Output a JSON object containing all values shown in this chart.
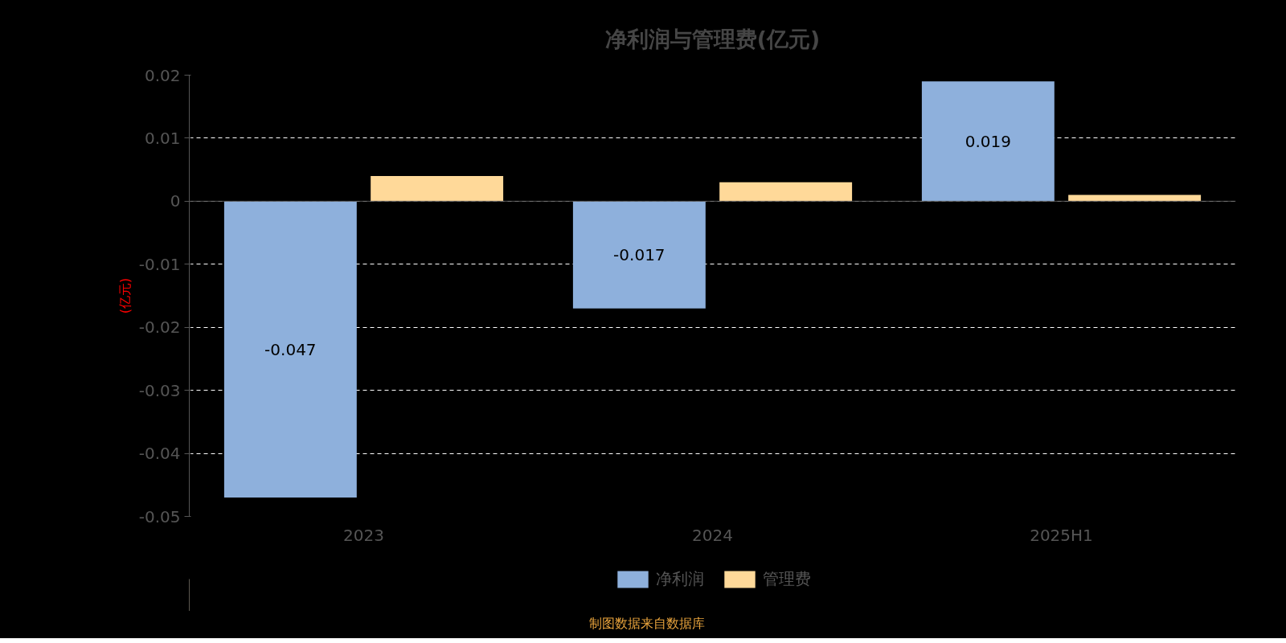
{
  "chart_data": {
    "type": "bar",
    "title": "净利润与管理费(亿元)",
    "ylabel": "(亿元)",
    "categories": [
      "2023",
      "2024",
      "2025H1"
    ],
    "series": [
      {
        "name": "净利润",
        "color": "#8eb0dc",
        "values": [
          -0.047,
          -0.017,
          0.019
        ],
        "value_labels": [
          "-0.047",
          "-0.017",
          "0.019"
        ]
      },
      {
        "name": "管理费",
        "color": "#ffd999",
        "values": [
          0.004,
          0.003,
          0.001
        ]
      }
    ],
    "ylim": [
      -0.05,
      0.02
    ],
    "yticks": [
      -0.05,
      -0.04,
      -0.03,
      -0.02,
      -0.01,
      0,
      0.01,
      0.02
    ],
    "grid": "y",
    "legend": "bottom",
    "annotations": [
      "制图数据来自数据库"
    ]
  }
}
